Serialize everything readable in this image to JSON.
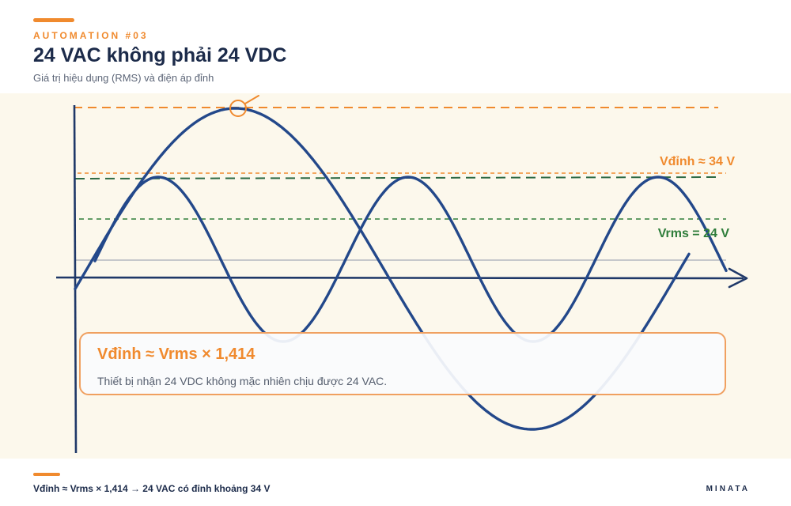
{
  "header": {
    "eyebrow": "AUTOMATION #03",
    "title": "24 VAC không phải 24 VDC",
    "subtitle": "Giá trị hiệu dụng (RMS) và điện áp đỉnh"
  },
  "diagram": {
    "peak_label": "Vđỉnh ≈ 34 V",
    "rms_label": "Vrms = 24 V",
    "colors": {
      "wave": "#23488a",
      "axis": "#1f3868",
      "peak": "#f08a2e",
      "rms": "#2e7d3a",
      "background": "#fcf8ec"
    }
  },
  "callout": {
    "formula": "Vđỉnh ≈ Vrms × 1,414",
    "note": "Thiết bị nhận 24 VDC không mặc nhiên chịu được 24 VAC."
  },
  "footer": {
    "formula": "Vđỉnh ≈ Vrms × 1,414 → 24 VAC có đỉnh khoảng 34 V",
    "brand": "MINATA"
  }
}
